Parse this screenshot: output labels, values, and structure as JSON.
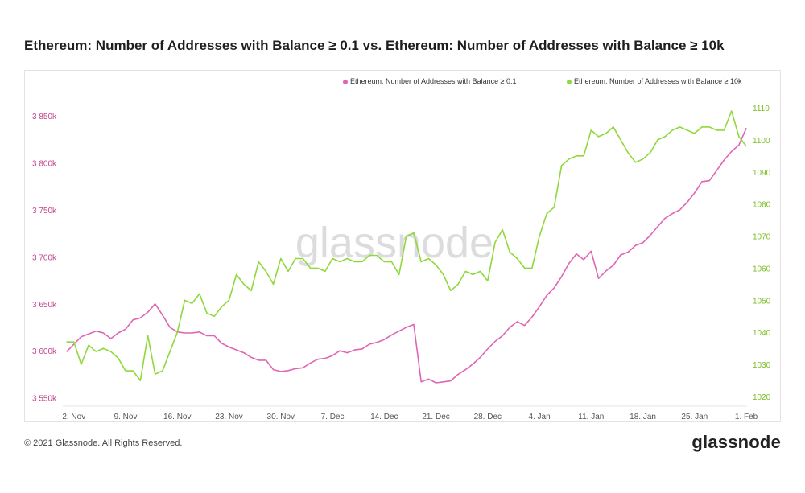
{
  "page": {
    "title": "Ethereum: Number of Addresses with Balance ≥ 0.1 vs. Ethereum: Number of Addresses with Balance ≥ 10k",
    "copyright": "© 2021 Glassnode. All Rights Reserved.",
    "brand": "glassnode",
    "watermark": "glassnode"
  },
  "colors": {
    "series_left": "#e164b4",
    "series_right": "#8fd83a",
    "axis_text": "#555555",
    "left_ticks": "#c0448c",
    "right_ticks": "#79bf22"
  },
  "chart_data": {
    "type": "line",
    "x": [
      "2020-11-01",
      "2020-11-02",
      "2020-11-03",
      "2020-11-04",
      "2020-11-05",
      "2020-11-06",
      "2020-11-07",
      "2020-11-08",
      "2020-11-09",
      "2020-11-10",
      "2020-11-11",
      "2020-11-12",
      "2020-11-13",
      "2020-11-14",
      "2020-11-15",
      "2020-11-16",
      "2020-11-17",
      "2020-11-18",
      "2020-11-19",
      "2020-11-20",
      "2020-11-21",
      "2020-11-22",
      "2020-11-23",
      "2020-11-24",
      "2020-11-25",
      "2020-11-26",
      "2020-11-27",
      "2020-11-28",
      "2020-11-29",
      "2020-11-30",
      "2020-12-01",
      "2020-12-02",
      "2020-12-03",
      "2020-12-04",
      "2020-12-05",
      "2020-12-06",
      "2020-12-07",
      "2020-12-08",
      "2020-12-09",
      "2020-12-10",
      "2020-12-11",
      "2020-12-12",
      "2020-12-13",
      "2020-12-14",
      "2020-12-15",
      "2020-12-16",
      "2020-12-17",
      "2020-12-18",
      "2020-12-19",
      "2020-12-20",
      "2020-12-21",
      "2020-12-22",
      "2020-12-23",
      "2020-12-24",
      "2020-12-25",
      "2020-12-26",
      "2020-12-27",
      "2020-12-28",
      "2020-12-29",
      "2020-12-30",
      "2020-12-31",
      "2021-01-01",
      "2021-01-02",
      "2021-01-03",
      "2021-01-04",
      "2021-01-05",
      "2021-01-06",
      "2021-01-07",
      "2021-01-08",
      "2021-01-09",
      "2021-01-10",
      "2021-01-11",
      "2021-01-12",
      "2021-01-13",
      "2021-01-14",
      "2021-01-15",
      "2021-01-16",
      "2021-01-17",
      "2021-01-18",
      "2021-01-19",
      "2021-01-20",
      "2021-01-21",
      "2021-01-22",
      "2021-01-23",
      "2021-01-24",
      "2021-01-25",
      "2021-01-26",
      "2021-01-27",
      "2021-01-28",
      "2021-01-29",
      "2021-01-30",
      "2021-01-31",
      "2021-02-01"
    ],
    "x_tick_labels": [
      "2. Nov",
      "9. Nov",
      "16. Nov",
      "23. Nov",
      "30. Nov",
      "7. Dec",
      "14. Dec",
      "21. Dec",
      "28. Dec",
      "4. Jan",
      "11. Jan",
      "18. Jan",
      "25. Jan",
      "1. Feb"
    ],
    "x_tick_dates": [
      "2020-11-02",
      "2020-11-09",
      "2020-11-16",
      "2020-11-23",
      "2020-11-30",
      "2020-12-07",
      "2020-12-14",
      "2020-12-21",
      "2020-12-28",
      "2021-01-04",
      "2021-01-11",
      "2021-01-18",
      "2021-01-25",
      "2021-02-01"
    ],
    "y_left": {
      "ticks": [
        3550000,
        3600000,
        3650000,
        3700000,
        3750000,
        3800000,
        3850000
      ],
      "tick_labels": [
        "3 550k",
        "3 600k",
        "3 650k",
        "3 700k",
        "3 750k",
        "3 800k",
        "3 850k"
      ],
      "range": [
        3550000,
        3850000
      ]
    },
    "y_right": {
      "ticks": [
        1020,
        1030,
        1040,
        1050,
        1060,
        1070,
        1080,
        1090,
        1100,
        1110
      ],
      "tick_labels": [
        "1020",
        "1030",
        "1040",
        "1050",
        "1060",
        "1070",
        "1080",
        "1090",
        "1100",
        "1110"
      ],
      "range": [
        1020,
        1110
      ]
    },
    "legend_position": "top-right",
    "grid": false,
    "series": [
      {
        "name": "Ethereum: Number of Addresses with Balance ≥ 0.1",
        "axis": "left",
        "values": [
          3599000,
          3607000,
          3615000,
          3618000,
          3621000,
          3619000,
          3613000,
          3619000,
          3623000,
          3633000,
          3635000,
          3641000,
          3650000,
          3638000,
          3625000,
          3620000,
          3619000,
          3619000,
          3620000,
          3616000,
          3616000,
          3608000,
          3604000,
          3601000,
          3598000,
          3593000,
          3590000,
          3590000,
          3580000,
          3578000,
          3579000,
          3581000,
          3582000,
          3587000,
          3591000,
          3592000,
          3595000,
          3600000,
          3598000,
          3601000,
          3602000,
          3607000,
          3609000,
          3612000,
          3617000,
          3621000,
          3625000,
          3628000,
          3567000,
          3570000,
          3566000,
          3567000,
          3568000,
          3575000,
          3580000,
          3586000,
          3593000,
          3602000,
          3610000,
          3616000,
          3625000,
          3631000,
          3627000,
          3636000,
          3647000,
          3659000,
          3667000,
          3679000,
          3693000,
          3703000,
          3697000,
          3706000,
          3677000,
          3685000,
          3691000,
          3702000,
          3705000,
          3712000,
          3715000,
          3723000,
          3732000,
          3741000,
          3746000,
          3750000,
          3758000,
          3768000,
          3780000,
          3781000,
          3792000,
          3803000,
          3812000,
          3819000,
          3837000
        ]
      },
      {
        "name": "Ethereum: Number of Addresses with Balance ≥ 10k",
        "axis": "right",
        "values": [
          1037,
          1037,
          1030,
          1036,
          1034,
          1035,
          1034,
          1032,
          1028,
          1028,
          1025,
          1039,
          1027,
          1028,
          1034,
          1040,
          1050,
          1049,
          1052,
          1046,
          1045,
          1048,
          1050,
          1058,
          1055,
          1053,
          1062,
          1059,
          1055,
          1063,
          1059,
          1063,
          1063,
          1060,
          1060,
          1059,
          1063,
          1062,
          1063,
          1062,
          1062,
          1064,
          1064,
          1062,
          1062,
          1058,
          1070,
          1071,
          1062,
          1063,
          1061,
          1058,
          1053,
          1055,
          1059,
          1058,
          1059,
          1056,
          1068,
          1072,
          1065,
          1063,
          1060,
          1060,
          1070,
          1077,
          1079,
          1092,
          1094,
          1095,
          1095,
          1103,
          1101,
          1102,
          1104,
          1100,
          1096,
          1093,
          1094,
          1096,
          1100,
          1101,
          1103,
          1104,
          1103,
          1102,
          1104,
          1104,
          1103,
          1103,
          1109,
          1101,
          1098
        ]
      }
    ]
  }
}
